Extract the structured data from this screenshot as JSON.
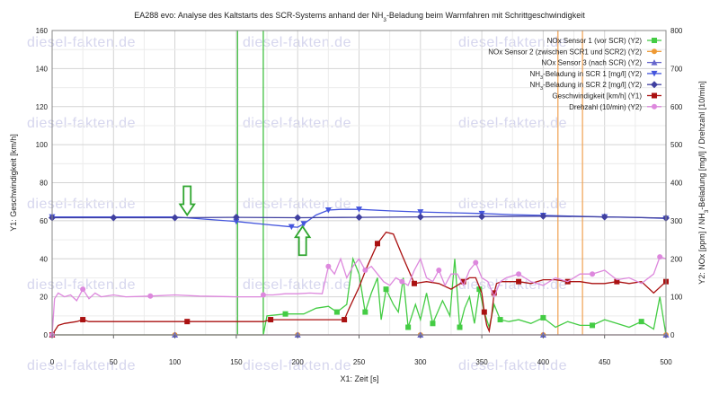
{
  "chart_data": {
    "type": "line",
    "title": "EA288 evo: Analyse des Kaltstarts des SCR-Systems anhand der NH3-Beladung beim Warmfahren mit Schrittgeschwindigkeit",
    "title_parts": {
      "before": "EA288 evo: Analyse des Kaltstarts des SCR-Systems anhand der NH",
      "sub": "3",
      "after": "-Beladung beim Warmfahren mit Schrittgeschwindigkeit"
    },
    "xlabel": "X1: Zeit [s]",
    "y1label": "Y1: Geschwindigkeit [km/h]",
    "y2label_parts": {
      "before": "Y2: NOx [ppm] / NH",
      "sub": "3",
      "after": "-Beladung [mg/l] / Drehzahl [10/min]"
    },
    "xlim": [
      0,
      500
    ],
    "y1lim": [
      0,
      160
    ],
    "y2lim": [
      0,
      800
    ],
    "x_ticks": [
      "0",
      "50",
      "100",
      "150",
      "200",
      "250",
      "300",
      "350",
      "400",
      "450",
      "500"
    ],
    "y1_ticks": [
      "0",
      "20",
      "40",
      "60",
      "80",
      "100",
      "120",
      "140",
      "160"
    ],
    "y2_ticks": [
      "0",
      "100",
      "200",
      "300",
      "400",
      "500",
      "600",
      "700",
      "800"
    ],
    "grid": true,
    "legend_position": "top-right",
    "watermark": "diesel-fakten.de",
    "vertical_markers": [
      {
        "x": 151,
        "color": "#33bb33"
      },
      {
        "x": 172,
        "color": "#33bb33"
      },
      {
        "x": 412,
        "color": "#f0a050"
      },
      {
        "x": 432,
        "color": "#f0a050"
      }
    ],
    "annotations": [
      {
        "type": "arrow-down",
        "x": 110,
        "y": 126
      },
      {
        "type": "arrow-up",
        "x": 204,
        "y": 114
      }
    ],
    "series": [
      {
        "name": "NOx Sensor 1 (vor SCR) (Y2)",
        "axis": "y2",
        "color": "#44cc44",
        "marker": "square",
        "x": [
          0,
          150,
          172,
          175,
          190,
          205,
          215,
          225,
          232,
          240,
          245,
          250,
          255,
          260,
          265,
          268,
          272,
          278,
          282,
          286,
          290,
          296,
          300,
          305,
          310,
          318,
          324,
          328,
          332,
          336,
          340,
          344,
          348,
          352,
          356,
          360,
          365,
          372,
          380,
          390,
          400,
          410,
          420,
          430,
          440,
          450,
          460,
          470,
          480,
          490,
          495,
          500
        ],
        "values": [
          0,
          0,
          0,
          50,
          55,
          55,
          70,
          75,
          60,
          80,
          200,
          160,
          60,
          110,
          150,
          40,
          120,
          80,
          60,
          150,
          20,
          80,
          40,
          110,
          30,
          90,
          50,
          200,
          20,
          70,
          100,
          30,
          120,
          60,
          20,
          80,
          40,
          35,
          40,
          30,
          45,
          20,
          35,
          25,
          25,
          40,
          30,
          20,
          35,
          15,
          100,
          0
        ]
      },
      {
        "name": "NOx Sensor 2 (zwischen SCR1 und SCR2) (Y2)",
        "axis": "y2",
        "color": "#ee9933",
        "marker": "circle",
        "x": [
          0,
          100,
          200,
          300,
          400,
          500
        ],
        "values": [
          0,
          0,
          0,
          0,
          0,
          0
        ]
      },
      {
        "name": "NOx Sensor 3 (nach SCR) (Y2)",
        "axis": "y2",
        "color": "#6666cc",
        "marker": "triangle-up",
        "x": [
          0,
          100,
          200,
          300,
          400,
          500
        ],
        "values": [
          0,
          0,
          0,
          0,
          0,
          0
        ]
      },
      {
        "name": "NH3-Beladung in SCR 1 [mg/l] (Y2)",
        "axis": "y2",
        "color": "#4455dd",
        "marker": "triangle-down",
        "x": [
          0,
          100,
          150,
          175,
          195,
          200,
          205,
          215,
          225,
          235,
          250,
          275,
          300,
          325,
          350,
          375,
          400,
          425,
          450,
          475,
          500
        ],
        "values": [
          310,
          310,
          298,
          290,
          284,
          283,
          292,
          315,
          328,
          330,
          330,
          326,
          323,
          321,
          319,
          316,
          314,
          312,
          310,
          309,
          306
        ]
      },
      {
        "name": "NH3-Beladung in SCR 2 [mg/l] (Y2)",
        "axis": "y2",
        "color": "#4040a0",
        "marker": "diamond",
        "x": [
          0,
          50,
          100,
          150,
          200,
          250,
          300,
          350,
          400,
          450,
          500
        ],
        "values": [
          308,
          308,
          308,
          309,
          308,
          309,
          310,
          311,
          312,
          310,
          307
        ]
      },
      {
        "name": "Geschwindigkeit [km/h] (Y1)",
        "axis": "y1",
        "color": "#aa1111",
        "marker": "square",
        "x": [
          0,
          5,
          10,
          20,
          25,
          30,
          40,
          80,
          110,
          150,
          165,
          172,
          178,
          190,
          200,
          220,
          238,
          242,
          250,
          256,
          265,
          272,
          278,
          285,
          295,
          305,
          315,
          325,
          335,
          340,
          345,
          350,
          352,
          354,
          356,
          358,
          360,
          362,
          366,
          370,
          380,
          390,
          400,
          410,
          420,
          430,
          440,
          450,
          460,
          470,
          480,
          490,
          500
        ],
        "values": [
          0,
          5,
          6,
          7,
          8,
          7,
          7,
          7,
          7,
          7,
          7,
          7,
          8,
          8,
          8,
          8,
          8,
          14,
          25,
          35,
          48,
          54,
          53,
          42,
          27,
          28,
          27,
          24,
          28,
          30,
          30,
          22,
          12,
          5,
          2,
          10,
          22,
          27,
          28,
          28,
          28,
          27,
          29,
          29,
          28,
          28,
          27,
          27,
          28,
          27,
          28,
          22,
          28
        ]
      },
      {
        "name": "Drehzahl (10/min) (Y2)",
        "axis": "y2",
        "color": "#dd88dd",
        "marker": "circle",
        "x": [
          0,
          2,
          5,
          10,
          15,
          20,
          25,
          30,
          35,
          40,
          50,
          60,
          80,
          100,
          120,
          150,
          160,
          170,
          172,
          180,
          190,
          200,
          210,
          220,
          225,
          230,
          235,
          240,
          245,
          250,
          255,
          260,
          265,
          270,
          275,
          280,
          285,
          290,
          295,
          300,
          305,
          310,
          315,
          320,
          325,
          330,
          335,
          340,
          345,
          350,
          355,
          360,
          365,
          370,
          380,
          390,
          400,
          410,
          420,
          430,
          440,
          450,
          460,
          470,
          480,
          490,
          495,
          500
        ],
        "values": [
          0,
          95,
          110,
          100,
          105,
          90,
          120,
          95,
          110,
          100,
          105,
          100,
          102,
          105,
          102,
          100,
          100,
          100,
          105,
          105,
          108,
          108,
          110,
          108,
          180,
          160,
          200,
          150,
          180,
          200,
          170,
          180,
          160,
          140,
          130,
          150,
          140,
          130,
          170,
          200,
          150,
          140,
          170,
          130,
          160,
          160,
          130,
          170,
          190,
          150,
          140,
          100,
          140,
          150,
          160,
          140,
          130,
          150,
          140,
          160,
          160,
          170,
          145,
          150,
          135,
          160,
          205,
          200
        ]
      }
    ],
    "legend_entries": [
      {
        "before": "NOx Sensor 1 (vor SCR) (Y2)",
        "sub": "",
        "after": ""
      },
      {
        "before": "NOx Sensor 2 (zwischen SCR1 und SCR2) (Y2)",
        "sub": "",
        "after": ""
      },
      {
        "before": "NOx Sensor 3 (nach SCR) (Y2)",
        "sub": "",
        "after": ""
      },
      {
        "before": "NH",
        "sub": "3",
        "after": "-Beladung in SCR 1 [mg/l] (Y2)"
      },
      {
        "before": "NH",
        "sub": "3",
        "after": "-Beladung in SCR 2 [mg/l] (Y2)"
      },
      {
        "before": "Geschwindigkeit [km/h] (Y1)",
        "sub": "",
        "after": ""
      },
      {
        "before": "Drehzahl (10/min) (Y2)",
        "sub": "",
        "after": ""
      }
    ]
  }
}
